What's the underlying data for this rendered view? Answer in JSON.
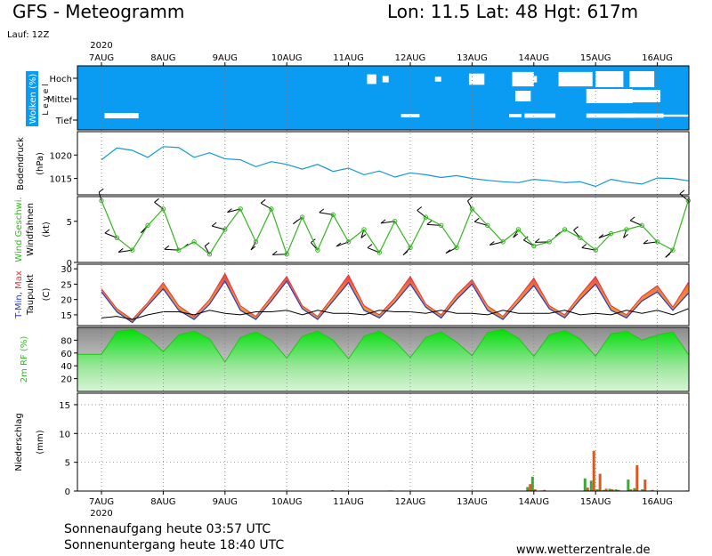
{
  "header": {
    "title": "GFS - Meteogramm",
    "location": "Lon: 11.5  Lat: 48  Hgt: 617m",
    "run": "Lauf: 12Z"
  },
  "footer": {
    "sunrise": "Sonnenaufgang heute 03:57 UTC",
    "sunset": "Sonnenuntergang heute 18:40 UTC",
    "source": "www.wetterzentrale.de"
  },
  "colors": {
    "cloud_bg": "#0a9cf2",
    "pressure": "#1596d6",
    "wind_green": "#33b61e",
    "tmax": "#e9333f",
    "tmin": "#2b35c8",
    "temp_fill": "#ef962b",
    "rh": "#22c418",
    "precip_red": "#d95a20",
    "precip_green": "#3aa83a"
  },
  "chart_data": {
    "type": "meteogram",
    "x": {
      "year": "2020",
      "dates": [
        "7AUG",
        "8AUG",
        "9AUG",
        "10AUG",
        "11AUG",
        "12AUG",
        "13AUG",
        "14AUG",
        "15AUG",
        "16AUG"
      ],
      "range_days": [
        0,
        9.55
      ]
    },
    "panels": {
      "clouds": {
        "label": "Wolken (%)",
        "level_word": "L e v e l",
        "levels": [
          "Hoch",
          "Mittel",
          "Tief"
        ],
        "patches": [
          {
            "level": "Tief",
            "day": 0.05,
            "width": 0.55,
            "cover": 25
          },
          {
            "level": "Hoch",
            "day": 4.3,
            "width": 0.15,
            "cover": 60
          },
          {
            "level": "Hoch",
            "day": 4.55,
            "width": 0.1,
            "cover": 40
          },
          {
            "level": "Hoch",
            "day": 5.4,
            "width": 0.1,
            "cover": 30
          },
          {
            "level": "Tief",
            "day": 4.85,
            "width": 0.3,
            "cover": 15
          },
          {
            "level": "Hoch",
            "day": 5.95,
            "width": 0.25,
            "cover": 70
          },
          {
            "level": "Hoch",
            "day": 6.9,
            "width": 0.15,
            "cover": 40
          },
          {
            "level": "Tief",
            "day": 6.85,
            "width": 0.5,
            "cover": 20
          },
          {
            "level": "Tief",
            "day": 6.6,
            "width": 0.2,
            "cover": 15
          },
          {
            "level": "Hoch",
            "day": 6.65,
            "width": 0.35,
            "cover": 90
          },
          {
            "level": "Mittel",
            "day": 6.7,
            "width": 0.25,
            "cover": 60
          },
          {
            "level": "Hoch",
            "day": 7.4,
            "width": 0.55,
            "cover": 90
          },
          {
            "level": "Hoch",
            "day": 8.0,
            "width": 0.45,
            "cover": 100
          },
          {
            "level": "Mittel",
            "day": 7.85,
            "width": 0.75,
            "cover": 80
          },
          {
            "level": "Tief",
            "day": 7.85,
            "width": 0.8,
            "cover": 20
          },
          {
            "level": "Hoch",
            "day": 8.55,
            "width": 0.4,
            "cover": 100
          },
          {
            "level": "Mittel",
            "day": 8.45,
            "width": 0.6,
            "cover": 70
          },
          {
            "level": "Tief",
            "day": 8.45,
            "width": 0.65,
            "cover": 20
          },
          {
            "level": "Tief",
            "day": 9.0,
            "width": 0.5,
            "cover": 10
          }
        ]
      },
      "pressure": {
        "label": "Bodendruck",
        "unit": "(hPa)",
        "ticks": [
          1015,
          1020
        ],
        "ylim": [
          1011.5,
          1025
        ],
        "day": [
          0,
          0.25,
          0.5,
          0.75,
          1,
          1.25,
          1.5,
          1.75,
          2,
          2.25,
          2.5,
          2.75,
          3,
          3.25,
          3.5,
          3.75,
          4,
          4.25,
          4.5,
          4.75,
          5,
          5.25,
          5.5,
          5.75,
          6,
          6.25,
          6.5,
          6.75,
          7,
          7.25,
          7.5,
          7.75,
          8,
          8.25,
          8.5,
          8.75,
          9,
          9.25,
          9.5
        ],
        "values": [
          1019.0,
          1021.5,
          1021.0,
          1019.5,
          1021.8,
          1021.6,
          1019.5,
          1020.5,
          1019.2,
          1019.0,
          1017.5,
          1018.6,
          1018.0,
          1017.0,
          1018.0,
          1016.5,
          1017.2,
          1015.8,
          1016.6,
          1015.3,
          1016.2,
          1015.8,
          1015.2,
          1015.6,
          1015.0,
          1014.6,
          1014.3,
          1014.1,
          1014.8,
          1014.5,
          1014.1,
          1014.3,
          1013.3,
          1014.8,
          1014.2,
          1013.8,
          1015.1,
          1015.0,
          1014.5
        ]
      },
      "wind": {
        "label": "Wind Geschwi.",
        "sublabel": "Windfahnen",
        "unit": "(kt)",
        "ticks": [
          0,
          5
        ],
        "ylim": [
          0,
          8
        ],
        "day": [
          0,
          0.25,
          0.5,
          0.75,
          1,
          1.25,
          1.5,
          1.75,
          2,
          2.25,
          2.5,
          2.75,
          3,
          3.25,
          3.5,
          3.75,
          4,
          4.25,
          4.5,
          4.75,
          5,
          5.25,
          5.5,
          5.75,
          6,
          6.25,
          6.5,
          6.75,
          7,
          7.25,
          7.5,
          7.75,
          8,
          8.25,
          8.5,
          8.75,
          9,
          9.25,
          9.5
        ],
        "values": [
          7.5,
          3.0,
          1.5,
          4.5,
          6.5,
          1.5,
          2.5,
          1.0,
          4.0,
          6.5,
          2.5,
          6.5,
          1.0,
          5.5,
          1.5,
          5.8,
          2.5,
          4.0,
          1.2,
          5.0,
          1.8,
          5.5,
          4.5,
          1.8,
          6.5,
          4.5,
          2.5,
          4.0,
          2.0,
          2.5,
          4.0,
          3.0,
          1.5,
          3.5,
          4.0,
          4.5,
          2.5,
          1.5,
          7.5
        ]
      },
      "temperature": {
        "label_tmin": "T-Min,",
        "label_tmax": "Max",
        "sublabel": "Taupunkt",
        "unit": "(C)",
        "ticks": [
          15,
          20,
          25,
          30
        ],
        "ylim": [
          11.5,
          31.5
        ],
        "day": [
          0,
          0.25,
          0.5,
          0.75,
          1,
          1.25,
          1.5,
          1.75,
          2,
          2.25,
          2.5,
          2.75,
          3,
          3.25,
          3.5,
          3.75,
          4,
          4.25,
          4.5,
          4.75,
          5,
          5.25,
          5.5,
          5.75,
          6,
          6.25,
          6.5,
          6.75,
          7,
          7.25,
          7.5,
          7.75,
          8,
          8.25,
          8.5,
          8.75,
          9,
          9.25,
          9.5
        ],
        "tmax": [
          23.5,
          17.0,
          13.5,
          19.0,
          25.5,
          18.0,
          14.5,
          20.0,
          28.5,
          18.0,
          14.5,
          21.0,
          27.5,
          18.0,
          14.5,
          21.0,
          28.0,
          18.0,
          15.0,
          20.5,
          27.5,
          18.5,
          15.0,
          21.5,
          26.5,
          18.0,
          14.5,
          20.5,
          27.0,
          18.0,
          15.0,
          21.5,
          27.5,
          18.0,
          15.0,
          21.0,
          24.5,
          17.5,
          25.5
        ],
        "tmin": [
          22.5,
          16.0,
          12.5,
          18.0,
          23.5,
          16.5,
          13.5,
          18.5,
          26.0,
          16.5,
          13.5,
          19.5,
          26.0,
          17.0,
          13.5,
          19.5,
          25.5,
          16.5,
          14.0,
          19.0,
          25.0,
          17.5,
          14.0,
          20.0,
          25.0,
          16.5,
          13.5,
          19.0,
          24.5,
          17.0,
          14.0,
          20.0,
          25.0,
          16.5,
          14.0,
          19.5,
          22.5,
          16.5,
          22.0
        ],
        "dewpoint": [
          14.0,
          14.5,
          13.5,
          15.0,
          16.0,
          16.0,
          15.0,
          16.5,
          15.5,
          15.0,
          16.0,
          16.0,
          16.5,
          15.0,
          16.5,
          15.5,
          15.5,
          15.0,
          16.5,
          16.0,
          16.0,
          15.5,
          16.5,
          15.5,
          15.5,
          15.0,
          16.5,
          15.5,
          15.5,
          15.5,
          16.5,
          15.0,
          15.5,
          15.0,
          16.5,
          15.5,
          16.5,
          15.0,
          17.0
        ]
      },
      "humidity": {
        "label": "2m RF (%)",
        "ticks": [
          20,
          40,
          60,
          80
        ],
        "ylim": [
          0,
          100
        ],
        "day": [
          0,
          0.25,
          0.5,
          0.75,
          1,
          1.25,
          1.5,
          1.75,
          2,
          2.25,
          2.5,
          2.75,
          3,
          3.25,
          3.5,
          3.75,
          4,
          4.25,
          4.5,
          4.75,
          5,
          5.25,
          5.5,
          5.75,
          6,
          6.25,
          6.5,
          6.75,
          7,
          7.25,
          7.5,
          7.75,
          8,
          8.25,
          8.5,
          8.75,
          9,
          9.25,
          9.5
        ],
        "values": [
          58,
          93,
          97,
          84,
          62,
          88,
          94,
          82,
          46,
          84,
          93,
          80,
          52,
          86,
          94,
          80,
          51,
          86,
          94,
          78,
          53,
          84,
          93,
          77,
          56,
          92,
          97,
          83,
          55,
          88,
          95,
          82,
          55,
          90,
          94,
          80,
          88,
          93,
          58
        ]
      },
      "precip": {
        "label": "Niederschlag",
        "unit": "(mm)",
        "ticks": [
          0,
          5,
          10,
          15
        ],
        "ylim": [
          0,
          17
        ],
        "bars": [
          {
            "day": 3.72,
            "red": 0.15,
            "green": 0.05
          },
          {
            "day": 4.68,
            "red": 0.1,
            "green": 0.1
          },
          {
            "day": 5.72,
            "red": 0.05,
            "green": 0.05
          },
          {
            "day": 6.65,
            "red": 0.05,
            "green": 0.05
          },
          {
            "day": 6.92,
            "red": 1.2,
            "green": 0.7
          },
          {
            "day": 7.0,
            "red": 0.3,
            "green": 2.5
          },
          {
            "day": 7.15,
            "red": 0.2,
            "green": 0.1
          },
          {
            "day": 7.25,
            "red": 0.05,
            "green": 0.05
          },
          {
            "day": 7.38,
            "red": 0.05,
            "green": 0.05
          },
          {
            "day": 7.85,
            "red": 0.6,
            "green": 2.2
          },
          {
            "day": 7.95,
            "red": 7.0,
            "green": 1.8
          },
          {
            "day": 8.05,
            "red": 3.0,
            "green": 0.3
          },
          {
            "day": 8.15,
            "red": 0.4,
            "green": 0.2
          },
          {
            "day": 8.25,
            "red": 0.3,
            "green": 0.4
          },
          {
            "day": 8.35,
            "red": 0.2,
            "green": 0.3
          },
          {
            "day": 8.55,
            "red": 0.3,
            "green": 2.0
          },
          {
            "day": 8.65,
            "red": 4.5,
            "green": 0.5
          },
          {
            "day": 8.78,
            "red": 2.0,
            "green": 0.3
          },
          {
            "day": 8.9,
            "red": 0.2,
            "green": 0.1
          },
          {
            "day": 9.45,
            "red": 0.1,
            "green": 0.05
          }
        ]
      }
    }
  }
}
